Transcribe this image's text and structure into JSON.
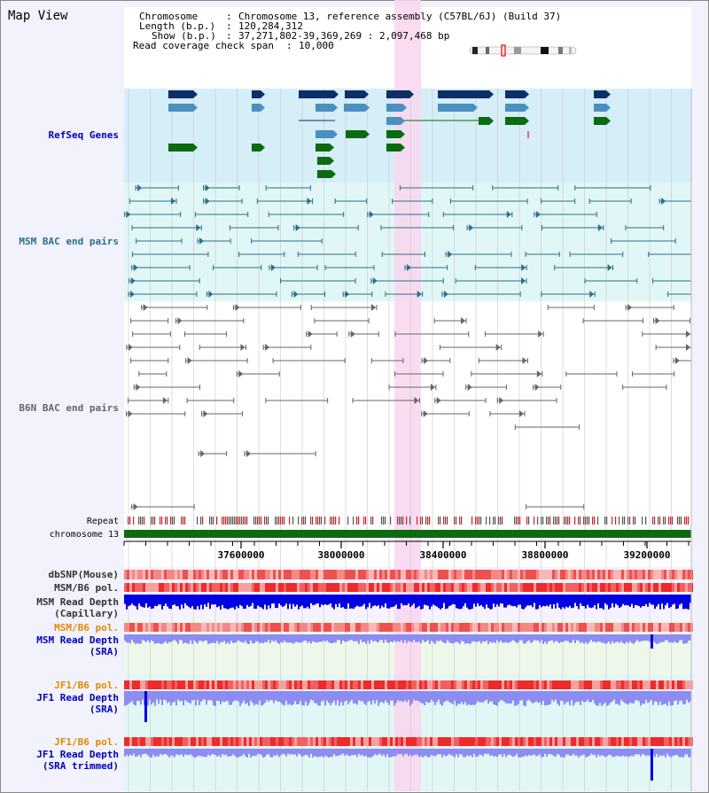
{
  "title": "Map View",
  "info": {
    "chromosome_key": "Chromosome",
    "chromosome_val": "Chromosome 13, reference assembly (C57BL/6J) (Build 37)",
    "length_key": "Length (b.p.)",
    "length_val": "120,284,312",
    "show_key": "Show (b.p.)",
    "show_val": "37,271,802-39,369,269 : 2,097,468 bp",
    "coverage_key": "Read coverage check span",
    "coverage_val": "10,000"
  },
  "tracks": {
    "refseq": "RefSeq Genes",
    "msm_bac": "MSM BAC end pairs",
    "b6n_bac": "B6N BAC end pairs",
    "repeat": "Repeat",
    "chromosome": "chromosome 13",
    "dbsnp": "dbSNP(Mouse)",
    "msm_b6_pol_1": "MSM/B6 pol.",
    "msm_depth_cap_1": "MSM Read Depth",
    "msm_depth_cap_2": "(Capillary)",
    "msm_b6_pol_2": "MSM/B6 pol.",
    "msm_depth_sra_1": "MSM Read Depth",
    "msm_depth_sra_2": "(SRA)",
    "jf1_pol_1": "JF1/B6 pol.",
    "jf1_depth_sra_1": "JF1 Read Depth",
    "jf1_depth_sra_2": "(SRA)",
    "jf1_pol_2": "JF1/B6 pol.",
    "jf1_depth_trim_1": "JF1 Read Depth",
    "jf1_depth_trim_2": "(SRA trimmed)"
  },
  "axis_ticks": [
    "37600000",
    "38000000",
    "38400000",
    "38800000",
    "39200000"
  ],
  "colors": {
    "refseq_bg": "#d6eef8",
    "msm_bg": "#e1f6f6",
    "highlight": "#f8d8f0",
    "gene_dark": "#0d2f66",
    "gene_mid": "#4a90bf",
    "gene_green": "#0c6b10",
    "msm_pair": "#2a6f8a",
    "b6n_pair": "#666666",
    "depth_blue": "#0000e0",
    "depth_light": "#8c8cf2",
    "label_blue": "#0000bb",
    "label_orange": "#e08a00"
  }
}
